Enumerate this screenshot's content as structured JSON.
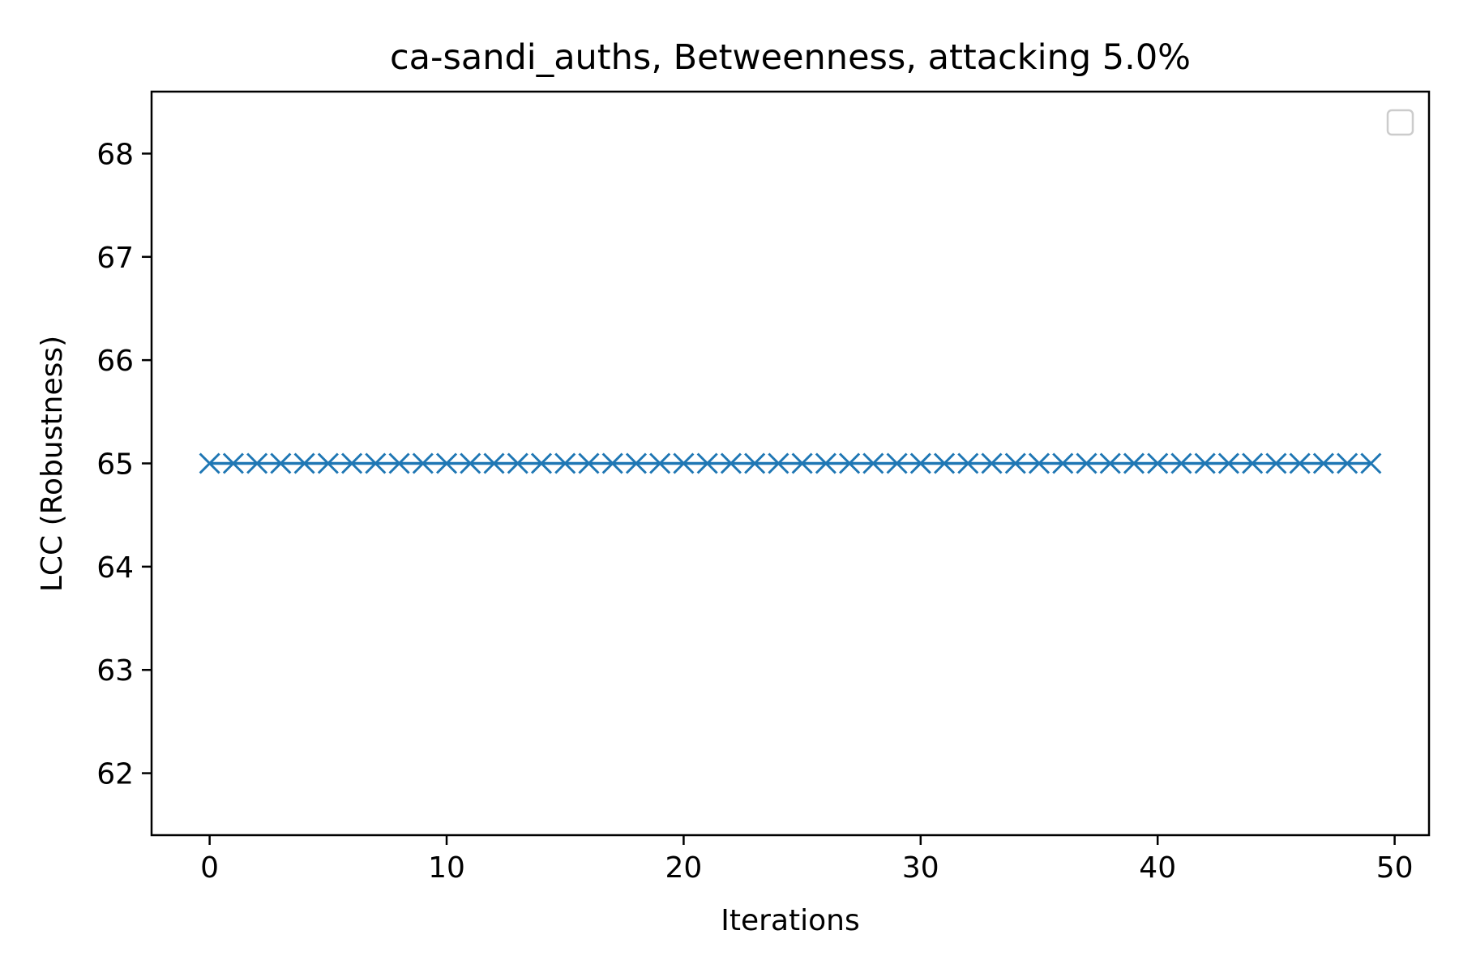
{
  "chart_data": {
    "type": "line",
    "title": "ca-sandi_auths, Betweenness, attacking 5.0%",
    "xlabel": "Iterations",
    "ylabel": "LCC (Robustness)",
    "xlim": [
      -2.45,
      51.45
    ],
    "ylim": [
      61.4,
      68.6
    ],
    "xticks": [
      0,
      10,
      20,
      30,
      40,
      50
    ],
    "yticks": [
      62,
      63,
      64,
      65,
      66,
      67,
      68
    ],
    "grid": false,
    "legend": "top-right, empty",
    "marker": "x",
    "colors": {
      "series": "#1f77b4",
      "axes": "#000000",
      "legend_border": "#cccccc"
    },
    "series": [
      {
        "x": [
          0,
          1,
          2,
          3,
          4,
          5,
          6,
          7,
          8,
          9,
          10,
          11,
          12,
          13,
          14,
          15,
          16,
          17,
          18,
          19,
          20,
          21,
          22,
          23,
          24,
          25,
          26,
          27,
          28,
          29,
          30,
          31,
          32,
          33,
          34,
          35,
          36,
          37,
          38,
          39,
          40,
          41,
          42,
          43,
          44,
          45,
          46,
          47,
          48,
          49
        ],
        "values": [
          65,
          65,
          65,
          65,
          65,
          65,
          65,
          65,
          65,
          65,
          65,
          65,
          65,
          65,
          65,
          65,
          65,
          65,
          65,
          65,
          65,
          65,
          65,
          65,
          65,
          65,
          65,
          65,
          65,
          65,
          65,
          65,
          65,
          65,
          65,
          65,
          65,
          65,
          65,
          65,
          65,
          65,
          65,
          65,
          65,
          65,
          65,
          65,
          65,
          65
        ]
      }
    ]
  }
}
